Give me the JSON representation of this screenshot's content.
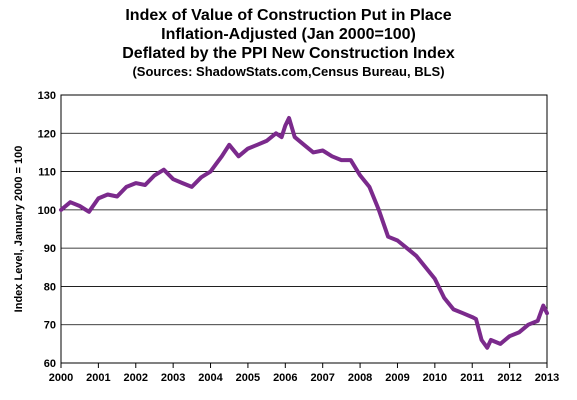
{
  "chart_data": {
    "type": "line",
    "title_lines": [
      "Index of Value of Construction Put in Place",
      "Inflation-Adjusted (Jan 2000=100)",
      "Deflated by the PPI New Construction Index"
    ],
    "subtitle": "(Sources: ShadowStats.com,Census Bureau, BLS)",
    "xlabel": "",
    "ylabel": "Index Level, January 2000 = 100",
    "xlim": [
      2000,
      2013
    ],
    "ylim": [
      60,
      130
    ],
    "x_ticks": [
      "2000",
      "2001",
      "2002",
      "2003",
      "2004",
      "2005",
      "2006",
      "2007",
      "2008",
      "2009",
      "2010",
      "2011",
      "2012",
      "2013"
    ],
    "y_ticks": [
      "60",
      "70",
      "80",
      "90",
      "100",
      "110",
      "120",
      "130"
    ],
    "grid": "horizontal",
    "line_color": "#7b2a8c",
    "x": [
      2000.0,
      2000.25,
      2000.5,
      2000.75,
      2001.0,
      2001.25,
      2001.5,
      2001.75,
      2002.0,
      2002.25,
      2002.5,
      2002.75,
      2003.0,
      2003.25,
      2003.5,
      2003.75,
      2004.0,
      2004.15,
      2004.3,
      2004.5,
      2004.75,
      2005.0,
      2005.25,
      2005.5,
      2005.75,
      2005.9,
      2006.0,
      2006.1,
      2006.25,
      2006.5,
      2006.75,
      2007.0,
      2007.25,
      2007.5,
      2007.75,
      2008.0,
      2008.25,
      2008.5,
      2008.75,
      2009.0,
      2009.25,
      2009.5,
      2009.75,
      2010.0,
      2010.25,
      2010.5,
      2010.75,
      2011.0,
      2011.1,
      2011.25,
      2011.4,
      2011.5,
      2011.75,
      2012.0,
      2012.25,
      2012.5,
      2012.75,
      2012.9,
      2013.0
    ],
    "y": [
      100,
      102,
      101,
      99.5,
      103,
      104,
      103.5,
      106,
      107,
      106.5,
      109,
      110.5,
      108,
      107,
      106,
      108.5,
      110,
      112,
      114,
      117,
      114,
      116,
      117,
      118,
      120,
      119,
      122,
      124,
      119,
      117,
      115,
      115.5,
      114,
      113,
      113,
      109,
      106,
      100,
      93,
      92,
      90,
      88,
      85,
      82,
      77,
      74,
      73,
      72,
      71.5,
      66,
      64,
      66,
      65,
      67,
      68,
      70,
      71,
      75,
      73
    ]
  }
}
